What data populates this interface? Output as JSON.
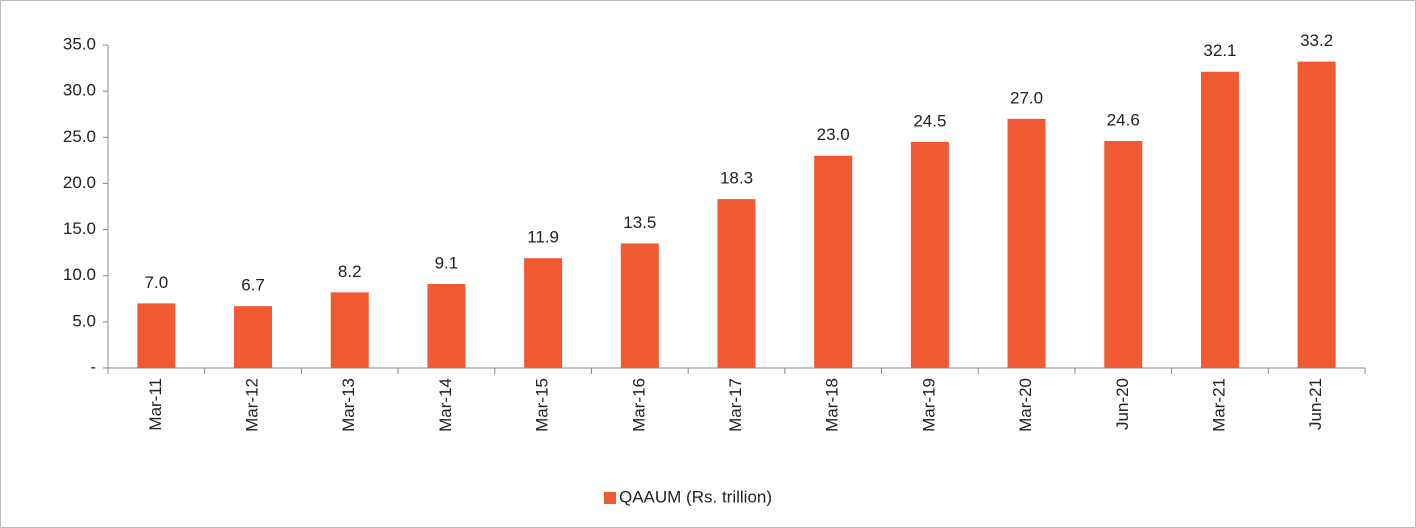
{
  "chart_data": {
    "type": "bar",
    "categories": [
      "Mar-11",
      "Mar-12",
      "Mar-13",
      "Mar-14",
      "Mar-15",
      "Mar-16",
      "Mar-17",
      "Mar-18",
      "Mar-19",
      "Mar-20",
      "Jun-20",
      "Mar-21",
      "Jun-21"
    ],
    "series": [
      {
        "name": "QAAUM (Rs. trillion)",
        "color": "#f05a32",
        "values": [
          7.0,
          6.7,
          8.2,
          9.1,
          11.9,
          13.5,
          18.3,
          23.0,
          24.5,
          27.0,
          24.6,
          32.1,
          33.2
        ],
        "value_labels": [
          "7.0",
          "6.7",
          "8.2",
          "9.1",
          "11.9",
          "13.5",
          "18.3",
          "23.0",
          "24.5",
          "27.0",
          "24.6",
          "32.1",
          "33.2"
        ]
      }
    ],
    "ylim": [
      0,
      35
    ],
    "yticks": [
      {
        "value": 0,
        "label": "-"
      },
      {
        "value": 5,
        "label": "5.0"
      },
      {
        "value": 10,
        "label": "10.0"
      },
      {
        "value": 15,
        "label": "15.0"
      },
      {
        "value": 20,
        "label": "20.0"
      },
      {
        "value": 25,
        "label": "25.0"
      },
      {
        "value": 30,
        "label": "30.0"
      },
      {
        "value": 35,
        "label": "35.0"
      }
    ],
    "grid": false,
    "legend": "bottom"
  }
}
